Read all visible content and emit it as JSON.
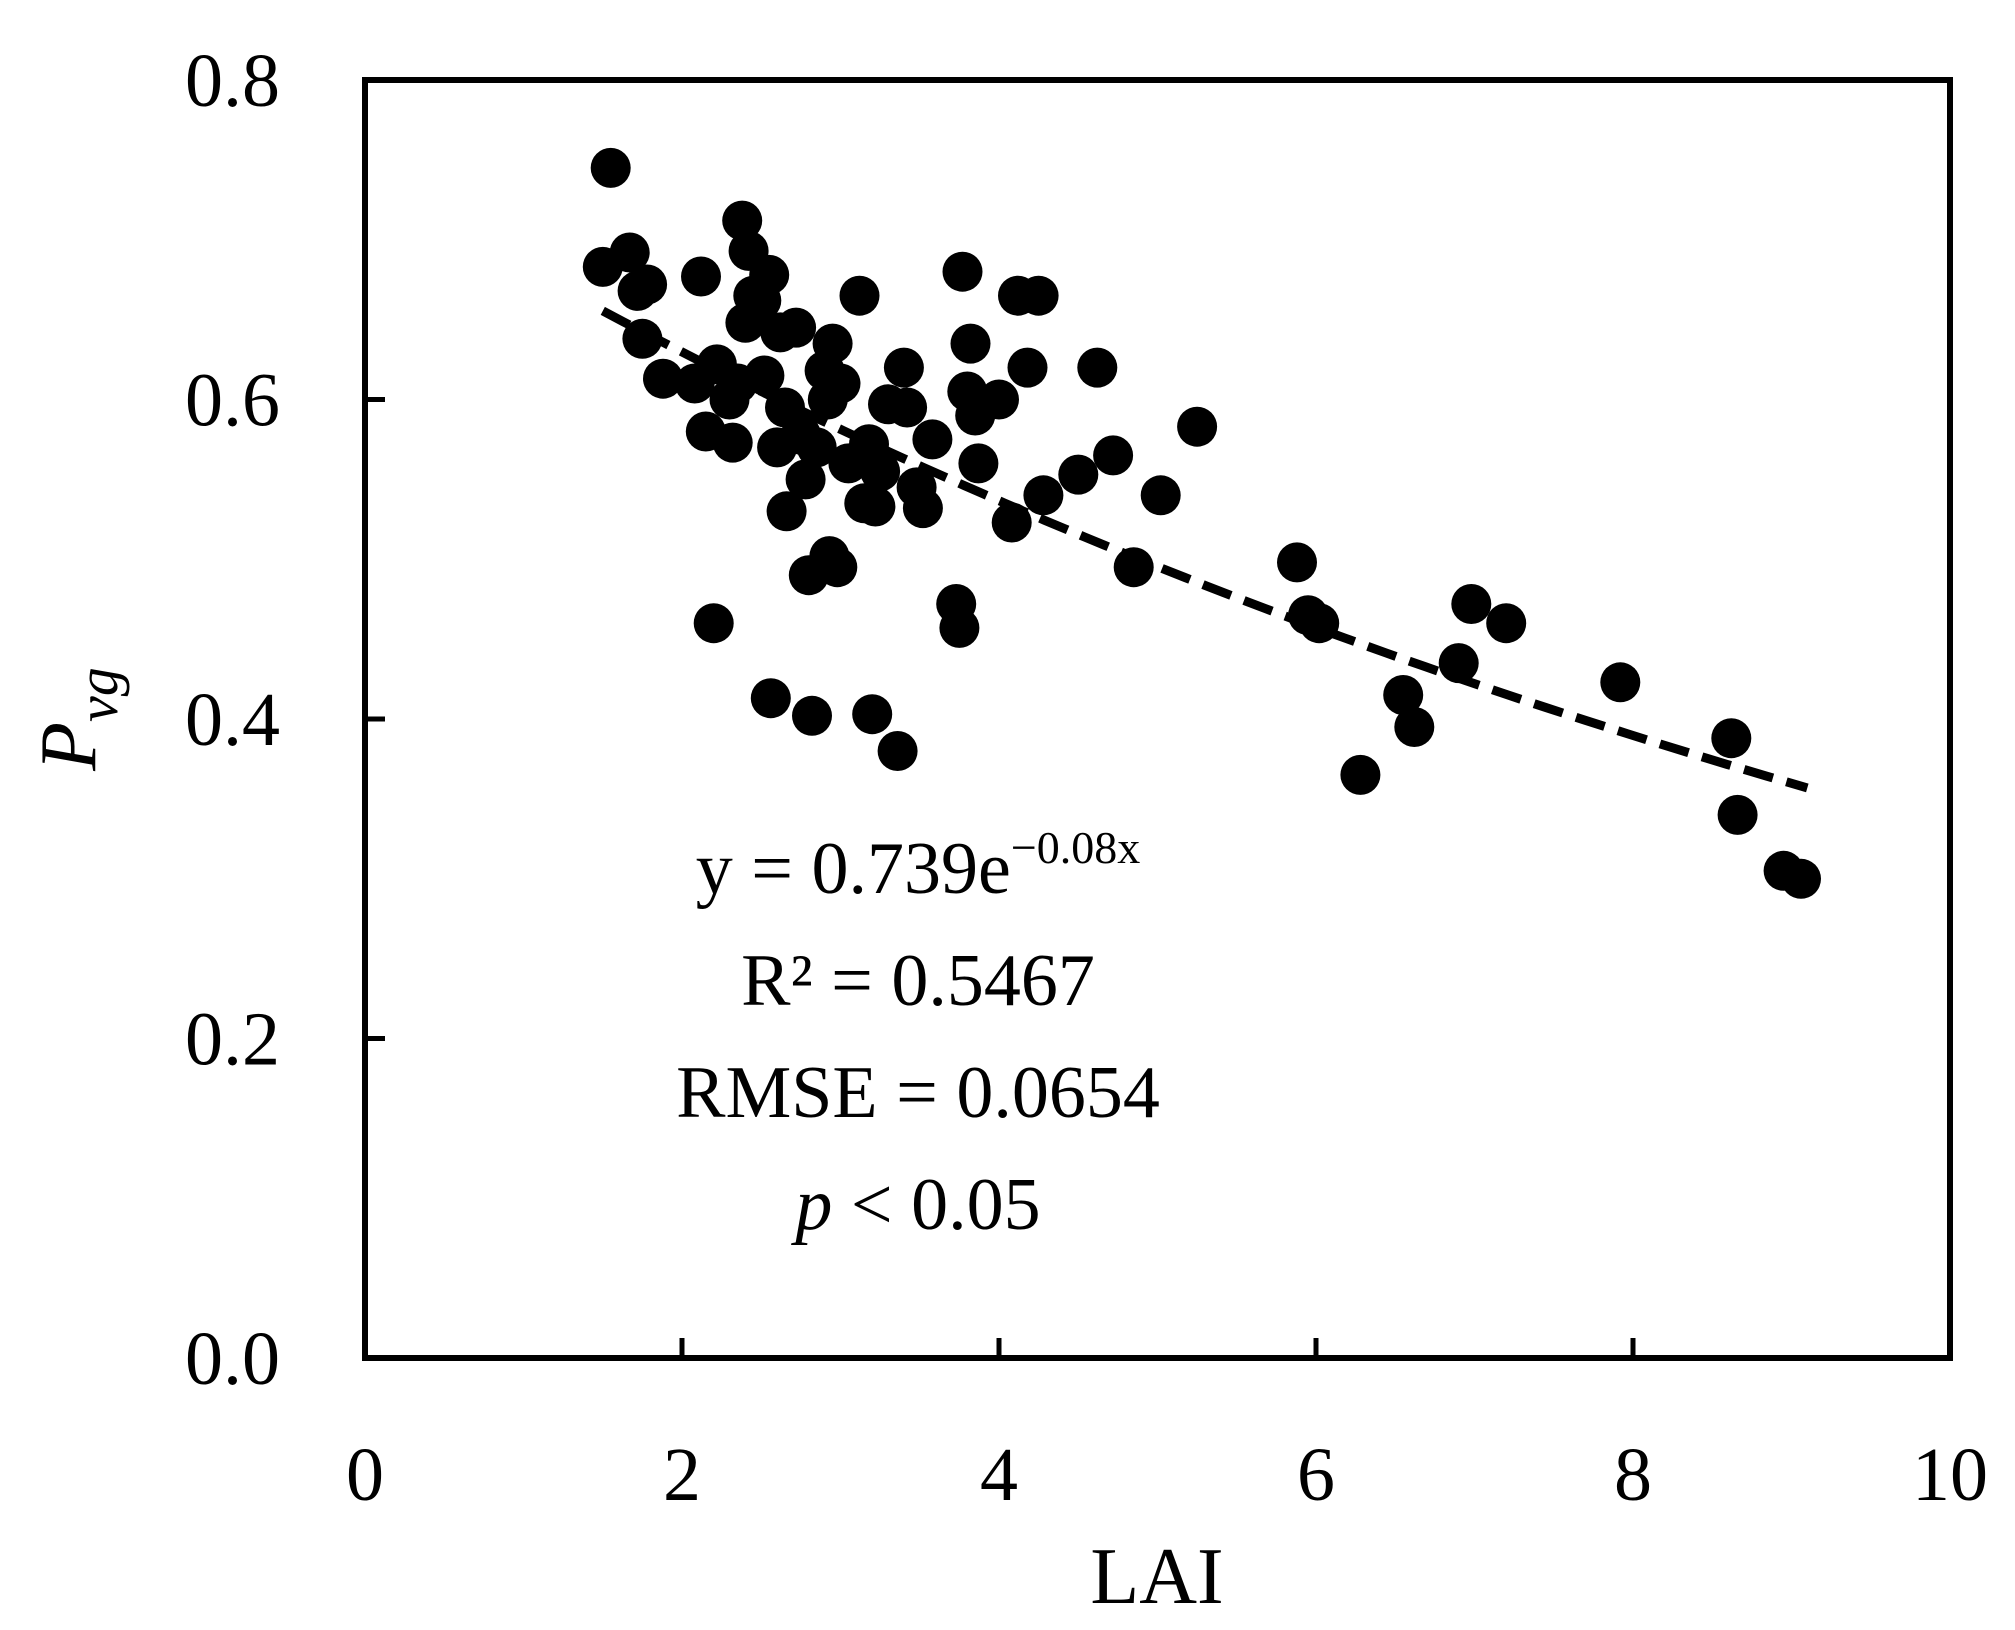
{
  "chart_data": {
    "type": "scatter",
    "xlabel": "LAI",
    "ylabel": {
      "main": "P",
      "sub": "vg"
    },
    "xlim": [
      0,
      10
    ],
    "ylim": [
      0,
      0.8
    ],
    "x_ticks": [
      "0",
      "2",
      "4",
      "6",
      "8",
      "10"
    ],
    "y_ticks": [
      "0.0",
      "0.2",
      "0.4",
      "0.6",
      "0.8"
    ],
    "grid": false,
    "legend": "none",
    "marker_color": "#000000",
    "trendline": {
      "style": "dashed",
      "model": "exponential",
      "a": 0.739,
      "b": -0.08,
      "x_range": [
        1.5,
        9.1
      ]
    },
    "annotations": {
      "equation": "y = 0.739e",
      "equation_exponent": "−0.08x",
      "r2": "R² = 0.5467",
      "rmse": "RMSE = 0.0654",
      "p_symbol": "p",
      "p_rest": " < 0.05"
    },
    "points": [
      [
        1.55,
        0.745
      ],
      [
        1.5,
        0.683
      ],
      [
        1.67,
        0.692
      ],
      [
        1.72,
        0.668
      ],
      [
        1.78,
        0.672
      ],
      [
        1.75,
        0.638
      ],
      [
        1.88,
        0.613
      ],
      [
        2.12,
        0.677
      ],
      [
        2.08,
        0.61
      ],
      [
        2.15,
        0.58
      ],
      [
        2.2,
        0.46
      ],
      [
        2.22,
        0.622
      ],
      [
        2.3,
        0.6
      ],
      [
        2.32,
        0.573
      ],
      [
        2.35,
        0.61
      ],
      [
        2.38,
        0.712
      ],
      [
        2.42,
        0.693
      ],
      [
        2.45,
        0.665
      ],
      [
        2.4,
        0.648
      ],
      [
        2.5,
        0.662
      ],
      [
        2.55,
        0.678
      ],
      [
        2.52,
        0.615
      ],
      [
        2.56,
        0.413
      ],
      [
        2.62,
        0.642
      ],
      [
        2.65,
        0.595
      ],
      [
        2.6,
        0.57
      ],
      [
        2.66,
        0.53
      ],
      [
        2.72,
        0.645
      ],
      [
        2.75,
        0.578
      ],
      [
        2.78,
        0.55
      ],
      [
        2.8,
        0.49
      ],
      [
        2.82,
        0.402
      ],
      [
        2.85,
        0.57
      ],
      [
        2.9,
        0.618
      ],
      [
        2.92,
        0.6
      ],
      [
        2.95,
        0.635
      ],
      [
        2.93,
        0.502
      ],
      [
        2.98,
        0.495
      ],
      [
        3.0,
        0.61
      ],
      [
        3.05,
        0.56
      ],
      [
        3.12,
        0.665
      ],
      [
        3.15,
        0.535
      ],
      [
        3.18,
        0.572
      ],
      [
        3.22,
        0.533
      ],
      [
        3.25,
        0.555
      ],
      [
        3.2,
        0.403
      ],
      [
        3.3,
        0.597
      ],
      [
        3.36,
        0.38
      ],
      [
        3.4,
        0.62
      ],
      [
        3.42,
        0.595
      ],
      [
        3.48,
        0.545
      ],
      [
        3.52,
        0.532
      ],
      [
        3.58,
        0.575
      ],
      [
        3.73,
        0.472
      ],
      [
        3.75,
        0.457
      ],
      [
        3.77,
        0.68
      ],
      [
        3.82,
        0.635
      ],
      [
        3.8,
        0.605
      ],
      [
        3.85,
        0.59
      ],
      [
        3.87,
        0.56
      ],
      [
        4.0,
        0.6
      ],
      [
        4.08,
        0.523
      ],
      [
        4.12,
        0.665
      ],
      [
        4.18,
        0.62
      ],
      [
        4.25,
        0.665
      ],
      [
        4.28,
        0.54
      ],
      [
        4.5,
        0.553
      ],
      [
        4.62,
        0.62
      ],
      [
        4.72,
        0.565
      ],
      [
        4.85,
        0.495
      ],
      [
        5.02,
        0.54
      ],
      [
        5.25,
        0.583
      ],
      [
        5.88,
        0.498
      ],
      [
        5.95,
        0.465
      ],
      [
        6.02,
        0.46
      ],
      [
        6.28,
        0.365
      ],
      [
        6.55,
        0.415
      ],
      [
        6.62,
        0.395
      ],
      [
        6.9,
        0.435
      ],
      [
        6.98,
        0.472
      ],
      [
        7.2,
        0.46
      ],
      [
        7.92,
        0.423
      ],
      [
        8.62,
        0.388
      ],
      [
        8.66,
        0.34
      ],
      [
        8.95,
        0.305
      ],
      [
        9.06,
        0.3
      ]
    ]
  }
}
